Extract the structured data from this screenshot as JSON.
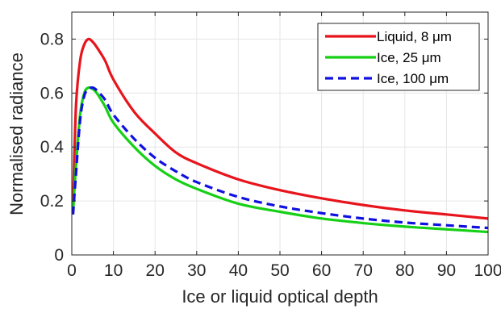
{
  "chart_data": {
    "type": "line",
    "title": "",
    "xlabel": "Ice or liquid optical depth",
    "ylabel": "Normalised radiance",
    "xlim": [
      0,
      100
    ],
    "ylim": [
      0,
      0.9
    ],
    "xticks": [
      0,
      10,
      20,
      30,
      40,
      50,
      60,
      70,
      80,
      90,
      100
    ],
    "yticks": [
      0,
      0.2,
      0.4,
      0.6,
      0.8
    ],
    "xtick_labels": [
      "0",
      "10",
      "20",
      "30",
      "40",
      "50",
      "60",
      "70",
      "80",
      "90",
      "100"
    ],
    "ytick_labels": [
      "0",
      "0.2",
      "0.4",
      "0.6",
      "0.8"
    ],
    "grid": true,
    "legend_position": "top-right",
    "series": [
      {
        "name": "Liquid, 8 μm",
        "color": "#e8141c",
        "dash": "solid",
        "x": [
          0.3,
          1,
          2,
          3,
          4,
          5,
          6,
          8,
          10,
          15,
          20,
          25,
          30,
          40,
          50,
          60,
          70,
          80,
          90,
          100
        ],
        "y": [
          0.18,
          0.55,
          0.72,
          0.78,
          0.8,
          0.79,
          0.77,
          0.72,
          0.65,
          0.53,
          0.45,
          0.38,
          0.34,
          0.28,
          0.24,
          0.21,
          0.185,
          0.165,
          0.15,
          0.135
        ]
      },
      {
        "name": "Ice, 25 μm",
        "color": "#16d016",
        "dash": "solid",
        "x": [
          0.3,
          1,
          2,
          3,
          4,
          5,
          6,
          8,
          10,
          15,
          20,
          25,
          30,
          40,
          50,
          60,
          70,
          80,
          90,
          100
        ],
        "y": [
          0.16,
          0.33,
          0.52,
          0.6,
          0.62,
          0.615,
          0.6,
          0.55,
          0.49,
          0.4,
          0.33,
          0.28,
          0.245,
          0.19,
          0.16,
          0.135,
          0.118,
          0.105,
          0.095,
          0.085
        ]
      },
      {
        "name": "Ice, 100 μm",
        "color": "#1010e0",
        "dash": "dashed",
        "x": [
          0.3,
          1,
          2,
          3,
          4,
          5,
          6,
          8,
          10,
          15,
          20,
          25,
          30,
          40,
          50,
          60,
          70,
          80,
          90,
          100
        ],
        "y": [
          0.15,
          0.3,
          0.5,
          0.59,
          0.615,
          0.62,
          0.61,
          0.575,
          0.52,
          0.43,
          0.36,
          0.31,
          0.27,
          0.215,
          0.18,
          0.155,
          0.135,
          0.12,
          0.11,
          0.1
        ]
      }
    ]
  }
}
